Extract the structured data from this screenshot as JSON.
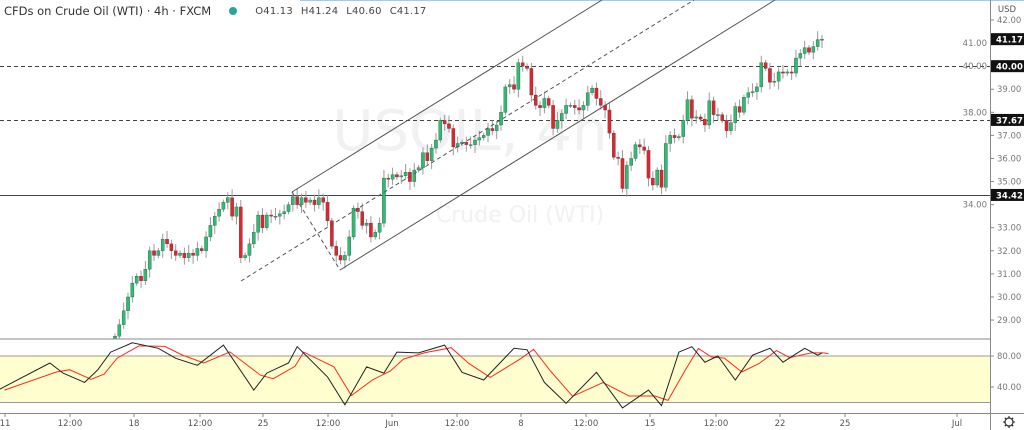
{
  "header": {
    "title": "CFDs on Crude Oil (WTI) · 4h · FXCM",
    "status_color": "#26a69a",
    "open": "O41.13",
    "high": "H41.24",
    "low": "L40.60",
    "close": "C41.17"
  },
  "watermark": {
    "symbol": "USOIL, 4h",
    "name": "Crude Oil (WTI)"
  },
  "price_axis": {
    "currency": "USD",
    "ticks": [
      "42.00",
      "41.00",
      "40.00",
      "39.00",
      "38.00",
      "37.00",
      "36.00",
      "35.00",
      "34.00",
      "33.00",
      "32.00",
      "31.00",
      "30.00",
      "29.00"
    ],
    "tick_values": [
      42,
      41,
      40,
      39,
      38,
      37,
      36,
      35,
      34,
      33,
      32,
      31,
      30,
      29
    ],
    "labels": [
      {
        "text": "41.17",
        "value": 41.17,
        "style": "last"
      },
      {
        "text": "40.00",
        "value": 40.0,
        "style": "dashed"
      },
      {
        "text": "37.67",
        "value": 37.67,
        "style": "dashed"
      },
      {
        "text": "34.42",
        "value": 34.42,
        "style": "solid"
      }
    ]
  },
  "stoch_axis": {
    "ticks": [
      "80.00",
      "40.00"
    ],
    "tick_values": [
      80,
      40
    ],
    "band": [
      20,
      80
    ]
  },
  "time_axis": [
    "11",
    "12:00",
    "18",
    "12:00",
    "25",
    "12:00",
    "Jun",
    "12:00",
    "8",
    "12:00",
    "15",
    "12:00",
    "22",
    "25",
    "Jul"
  ],
  "settings_icon": "gear-icon",
  "colors": {
    "up": "#2bbd72",
    "down": "#e0252e",
    "k_line": "#222222",
    "d_line": "#ff2a1a",
    "band_fill": "#fefecf"
  },
  "chart_data": {
    "type": "candlestick",
    "closes": [
      28.3,
      28.8,
      29.4,
      30.0,
      30.6,
      30.9,
      30.7,
      31.2,
      32.0,
      31.8,
      32.0,
      32.5,
      32.3,
      32.0,
      31.8,
      31.9,
      31.7,
      31.9,
      31.8,
      32.1,
      32.0,
      32.6,
      33.1,
      33.5,
      33.8,
      34.1,
      34.3,
      33.5,
      33.9,
      31.7,
      31.8,
      32.3,
      32.8,
      33.55,
      33.0,
      33.55,
      33.5,
      33.5,
      33.6,
      33.7,
      34.0,
      34.35,
      34.0,
      34.3,
      34.1,
      34.2,
      34.0,
      34.3,
      34.1,
      33.3,
      32.2,
      31.8,
      31.6,
      31.8,
      32.6,
      33.85,
      33.7,
      33.1,
      33.2,
      32.6,
      32.8,
      33.2,
      35.15,
      35.1,
      35.3,
      35.2,
      35.25,
      35.4,
      35.0,
      35.5,
      35.6,
      36.25,
      35.9,
      36.45,
      36.8,
      37.65,
      37.5,
      37.3,
      36.5,
      36.65,
      36.7,
      36.6,
      36.6,
      36.8,
      36.9,
      37.0,
      37.3,
      37.2,
      37.45,
      38.0,
      39.1,
      39.2,
      39.0,
      40.15,
      40.0,
      39.9,
      38.75,
      38.3,
      38.2,
      38.6,
      38.3,
      37.3,
      37.65,
      37.95,
      38.3,
      38.3,
      38.2,
      38.1,
      38.3,
      38.85,
      39.05,
      38.6,
      38.3,
      38.1,
      37.1,
      36.05,
      36.0,
      34.7,
      35.7,
      36.0,
      36.6,
      36.5,
      36.35,
      35.15,
      34.85,
      35.5,
      34.75,
      36.65,
      37.0,
      36.9,
      36.95,
      37.65,
      38.55,
      37.75,
      37.8,
      37.7,
      37.45,
      38.5,
      37.9,
      37.9,
      37.65,
      37.2,
      37.55,
      38.25,
      38.0,
      38.65,
      38.85,
      38.9,
      39.1,
      40.15,
      39.9,
      39.3,
      39.35,
      39.75,
      39.7,
      39.75,
      39.7,
      40.35,
      40.55,
      40.8,
      40.6,
      40.85,
      41.15,
      41.17
    ],
    "ylim": [
      28.5,
      42.6
    ],
    "stochastic": {
      "k": [
        [
          -27,
          36
        ],
        [
          -15,
          71
        ],
        [
          -12,
          58
        ],
        [
          -7,
          46
        ],
        [
          -4,
          62
        ],
        [
          -1,
          85
        ],
        [
          4,
          97
        ],
        [
          10,
          90
        ],
        [
          14,
          77
        ],
        [
          19,
          68
        ],
        [
          25,
          94
        ],
        [
          32,
          36
        ],
        [
          35,
          58
        ],
        [
          40,
          71
        ],
        [
          42,
          92
        ],
        [
          49,
          53
        ],
        [
          53,
          17
        ],
        [
          58,
          66
        ],
        [
          62,
          58
        ],
        [
          65,
          85
        ],
        [
          70,
          84
        ],
        [
          76,
          94
        ],
        [
          80,
          59
        ],
        [
          85,
          49
        ],
        [
          92,
          90
        ],
        [
          95,
          88
        ],
        [
          99,
          46
        ],
        [
          104,
          19
        ],
        [
          111,
          59
        ],
        [
          117,
          13
        ],
        [
          123,
          36
        ],
        [
          126,
          16
        ],
        [
          130,
          85
        ],
        [
          133,
          92
        ],
        [
          136,
          72
        ],
        [
          139,
          80
        ],
        [
          143,
          49
        ],
        [
          147,
          81
        ],
        [
          151,
          90
        ],
        [
          154,
          72
        ],
        [
          159,
          90
        ],
        [
          162,
          81
        ],
        [
          163,
          84
        ]
      ],
      "ylim": [
        0,
        105
      ]
    }
  }
}
